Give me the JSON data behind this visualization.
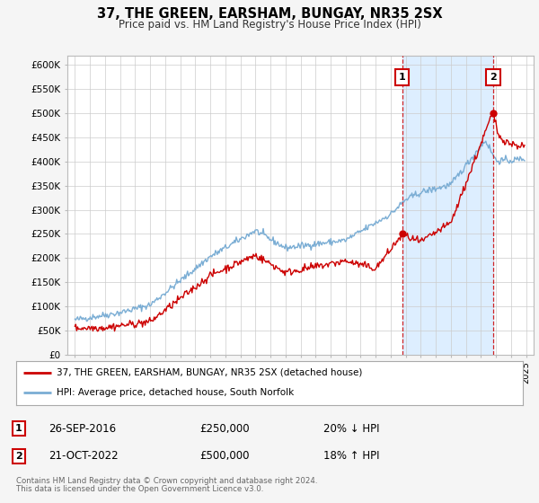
{
  "title": "37, THE GREEN, EARSHAM, BUNGAY, NR35 2SX",
  "subtitle": "Price paid vs. HM Land Registry's House Price Index (HPI)",
  "red_label": "37, THE GREEN, EARSHAM, BUNGAY, NR35 2SX (detached house)",
  "blue_label": "HPI: Average price, detached house, South Norfolk",
  "annotation1_date": "26-SEP-2016",
  "annotation1_price": "£250,000",
  "annotation1_hpi": "20% ↓ HPI",
  "annotation2_date": "21-OCT-2022",
  "annotation2_price": "£500,000",
  "annotation2_hpi": "18% ↑ HPI",
  "footnote1": "Contains HM Land Registry data © Crown copyright and database right 2024.",
  "footnote2": "This data is licensed under the Open Government Licence v3.0.",
  "red_color": "#cc0000",
  "blue_color": "#7aadd4",
  "shade_color": "#ddeeff",
  "marker1_x": 2016.75,
  "marker1_y": 250000,
  "marker2_x": 2022.8,
  "marker2_y": 500000,
  "vline1_x": 2016.75,
  "vline2_x": 2022.8,
  "ylim": [
    0,
    620000
  ],
  "xlim": [
    1994.5,
    2025.5
  ],
  "yticks": [
    0,
    50000,
    100000,
    150000,
    200000,
    250000,
    300000,
    350000,
    400000,
    450000,
    500000,
    550000,
    600000
  ],
  "ytick_labels": [
    "£0",
    "£50K",
    "£100K",
    "£150K",
    "£200K",
    "£250K",
    "£300K",
    "£350K",
    "£400K",
    "£450K",
    "£500K",
    "£550K",
    "£600K"
  ],
  "xticks": [
    1995,
    1996,
    1997,
    1998,
    1999,
    2000,
    2001,
    2002,
    2003,
    2004,
    2005,
    2006,
    2007,
    2008,
    2009,
    2010,
    2011,
    2012,
    2013,
    2014,
    2015,
    2016,
    2017,
    2018,
    2019,
    2020,
    2021,
    2022,
    2023,
    2024,
    2025
  ],
  "background_color": "#f5f5f5",
  "plot_bg_color": "#ffffff",
  "grid_color": "#cccccc"
}
